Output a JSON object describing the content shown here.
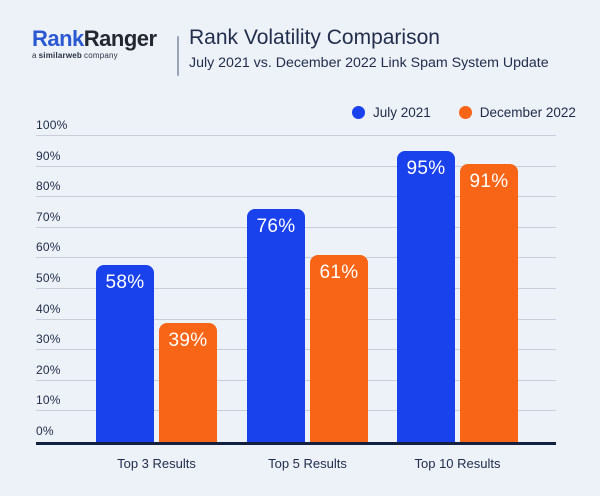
{
  "brand": {
    "name_primary": "Rank",
    "name_secondary": "Ranger",
    "tagline_prefix": "a",
    "tagline_bold": "similarweb",
    "tagline_suffix": "company"
  },
  "header": {
    "title": "Rank Volatility Comparison",
    "subtitle": "July 2021 vs. December 2022 Link Spam System Update"
  },
  "chart_data": {
    "type": "bar",
    "title": "Rank Volatility Comparison",
    "subtitle": "July 2021 vs. December 2022 Link Spam System Update",
    "categories": [
      "Top 3 Results",
      "Top 5 Results",
      "Top 10 Results"
    ],
    "series": [
      {
        "name": "July 2021",
        "color": "#1A42EC",
        "values": [
          58,
          76,
          95
        ],
        "labels": [
          "58%",
          "76%",
          "95%"
        ]
      },
      {
        "name": "December 2022",
        "color": "#F96517",
        "values": [
          39,
          61,
          91
        ],
        "labels": [
          "39%",
          "61%",
          "91%"
        ]
      }
    ],
    "ylim": [
      0,
      100
    ],
    "yticks": [
      {
        "value": 0,
        "label": "0%"
      },
      {
        "value": 10,
        "label": "10%"
      },
      {
        "value": 20,
        "label": "20%"
      },
      {
        "value": 30,
        "label": "30%"
      },
      {
        "value": 40,
        "label": "40%"
      },
      {
        "value": 50,
        "label": "50%"
      },
      {
        "value": 60,
        "label": "60%"
      },
      {
        "value": 70,
        "label": "70%"
      },
      {
        "value": 80,
        "label": "80%"
      },
      {
        "value": 90,
        "label": "90%"
      },
      {
        "value": 100,
        "label": "100%"
      }
    ],
    "grid": true,
    "legend_position": "top-right",
    "value_labels": "inside-top",
    "colors": {
      "background": "#EDF1F8",
      "gridline": "#C9CEDA",
      "axis": "#132040",
      "text": "#222E4C",
      "bar_label_text": "#FFFFFF"
    }
  }
}
